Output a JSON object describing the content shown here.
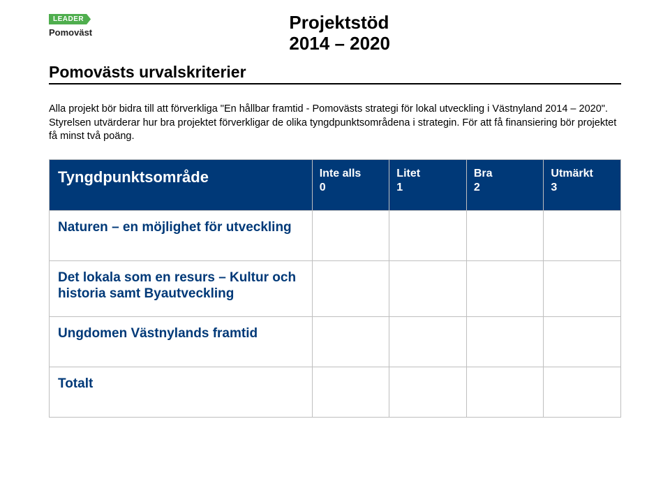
{
  "logo": {
    "tag": "LEADER",
    "brand": "Pomoväst"
  },
  "title": {
    "line1": "Projektstöd",
    "line2": "2014 – 2020"
  },
  "subtitle": "Pomovästs urvalskriterier",
  "intro": "Alla projekt bör bidra till att förverkliga \"En hållbar framtid - Pomovästs strategi för lokal utveckling i Västnyland 2014 – 2020\". Styrelsen utvärderar hur bra projektet förverkligar de olika tyngdpunktsområdena i strategin. För att få finansiering bör projektet få minst två poäng.",
  "table": {
    "header_label": "Tyngdpunktsområde",
    "columns": [
      {
        "label": "Inte alls",
        "value": "0"
      },
      {
        "label": "Litet",
        "value": "1"
      },
      {
        "label": "Bra",
        "value": "2"
      },
      {
        "label": "Utmärkt",
        "value": "3"
      }
    ],
    "rows": [
      {
        "label": "Naturen – en möjlighet för utveckling"
      },
      {
        "label": "Det lokala som en resurs – Kultur och historia samt Byautveckling"
      },
      {
        "label": "Ungdomen Västnylands framtid"
      },
      {
        "label": "Totalt"
      }
    ]
  },
  "colors": {
    "brand_blue": "#003978",
    "leader_green": "#4fae4e",
    "border_gray": "#bfbfbf",
    "text": "#000000",
    "bg": "#ffffff"
  }
}
